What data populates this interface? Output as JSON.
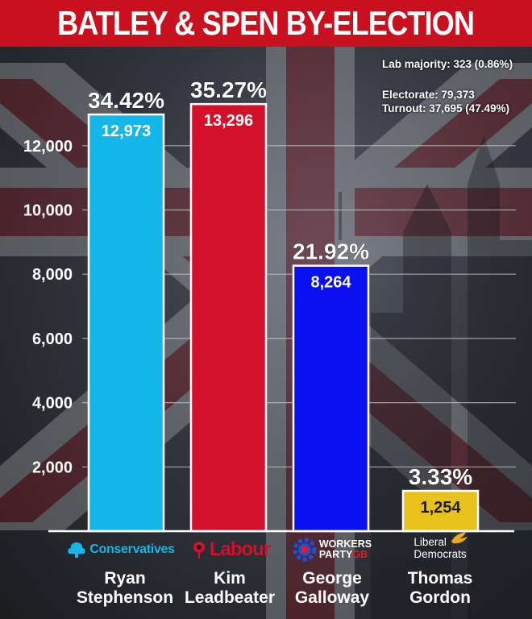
{
  "header": {
    "title": "BATLEY & SPEN BY-ELECTION"
  },
  "info": {
    "majority": "Lab majority: 323 (0.86%)",
    "electorate": "Electorate: 79,373",
    "turnout": "Turnout: 37,695 (47.49%)"
  },
  "colors": {
    "banner": "#c8101e",
    "conservatives": "#15b6ea",
    "labour": "#d2102a",
    "workers": "#0a10f0",
    "libdem": "#e9c11d"
  },
  "chart_data": {
    "type": "bar",
    "categories": [
      "Ryan Stephenson",
      "Kim Leadbeater",
      "George Galloway",
      "Thomas Gordon"
    ],
    "values": [
      12973,
      13296,
      8264,
      1254
    ],
    "value_labels": [
      "12,973",
      "13,296",
      "8,264",
      "1,254"
    ],
    "percent_labels": [
      "34.42%",
      "35.27%",
      "21.92%",
      "3.33%"
    ],
    "y_ticks": [
      2000,
      4000,
      6000,
      8000,
      10000,
      12000
    ],
    "y_tick_labels": [
      "2,000",
      "4,000",
      "6,000",
      "8,000",
      "10,000",
      "12,000"
    ],
    "ylim": [
      0,
      13296
    ],
    "grid": true,
    "title": "BATLEY & SPEN BY-ELECTION"
  },
  "parties": [
    {
      "logo_text": "Conservatives",
      "icon": "tree-icon"
    },
    {
      "logo_text": "Labour",
      "icon": "rose-icon"
    },
    {
      "logo_text_1": "WORKERS",
      "logo_text_2": "PARTY",
      "logo_text_3": "GB",
      "icon": "cog-icon"
    },
    {
      "logo_text_1": "Liberal",
      "logo_text_2": "Democrats",
      "icon": "bird-icon"
    }
  ],
  "candidates": [
    {
      "first": "Ryan",
      "last": "Stephenson"
    },
    {
      "first": "Kim",
      "last": "Leadbeater"
    },
    {
      "first": "George",
      "last": "Galloway"
    },
    {
      "first": "Thomas",
      "last": "Gordon"
    }
  ]
}
